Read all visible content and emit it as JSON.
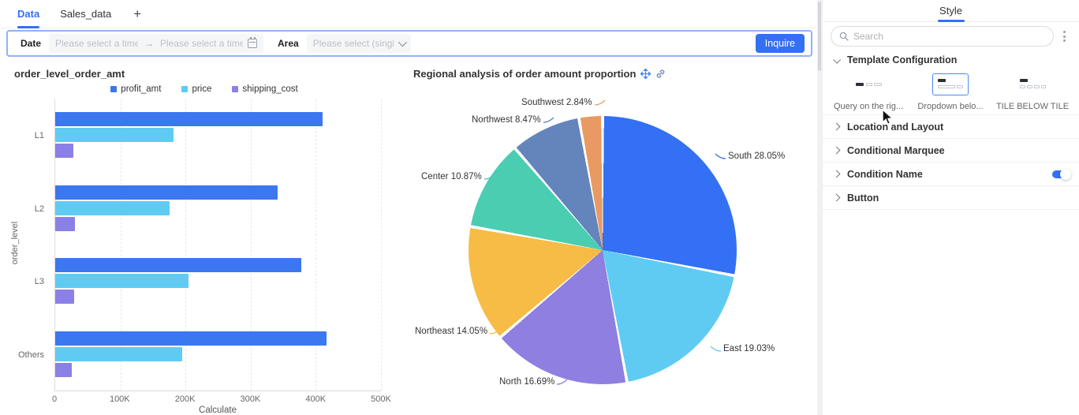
{
  "tabs": {
    "items": [
      {
        "label": "Data",
        "active": true
      },
      {
        "label": "Sales_data",
        "active": false
      }
    ],
    "add_label": "+"
  },
  "filter": {
    "date_label": "Date",
    "start_placeholder": "Please select a time",
    "range_arrow": "→",
    "end_placeholder": "Please select a time",
    "area_label": "Area",
    "area_placeholder": "Please select (single ch...",
    "inquire_label": "Inquire"
  },
  "style_panel": {
    "tab_label": "Style",
    "search_placeholder": "Search",
    "template_section_label": "Template Configuration",
    "templates": [
      {
        "label": "Query on the rig...",
        "selected": false
      },
      {
        "label": "Dropdown belo...",
        "selected": true
      },
      {
        "label": "TILE BELOW TILE",
        "selected": false
      }
    ],
    "rows": [
      {
        "label": "Location and Layout",
        "toggle": false
      },
      {
        "label": "Conditional Marquee",
        "toggle": false
      },
      {
        "label": "Condition Name",
        "toggle": true
      },
      {
        "label": "Button",
        "toggle": false
      }
    ]
  },
  "chart_data": [
    {
      "type": "bar",
      "orientation": "horizontal",
      "title": "order_level_order_amt",
      "categories": [
        "L1",
        "L2",
        "L3",
        "Others"
      ],
      "series": [
        {
          "name": "profit_amt",
          "color": "#3B78F0",
          "values": [
            410000,
            342000,
            378000,
            417000
          ]
        },
        {
          "name": "price",
          "color": "#5FCBF2",
          "values": [
            181000,
            176000,
            204000,
            195000
          ]
        },
        {
          "name": "shipping_cost",
          "color": "#8B80E8",
          "values": [
            28000,
            30000,
            29000,
            25000
          ]
        }
      ],
      "xlabel": "Calculate",
      "ylabel": "order_level",
      "xlim": [
        0,
        500000
      ],
      "xticks": [
        "0",
        "100K",
        "200K",
        "300K",
        "400K",
        "500K"
      ],
      "grid": true,
      "legend_position": "top"
    },
    {
      "type": "pie",
      "title": "Regional analysis of order amount proportion",
      "labels": [
        "South",
        "East",
        "North",
        "Northeast",
        "Center",
        "Northwest",
        "Southwest"
      ],
      "values": [
        28.05,
        19.03,
        16.69,
        14.05,
        10.87,
        8.47,
        2.84
      ],
      "colors": [
        "#3370F3",
        "#5FCBF2",
        "#8E7FE0",
        "#F7BC46",
        "#4BCDB2",
        "#6484BC",
        "#E99A62"
      ],
      "label_format": "{name} {value}%",
      "start_angle_deg": 0,
      "direction": "clockwise"
    }
  ]
}
